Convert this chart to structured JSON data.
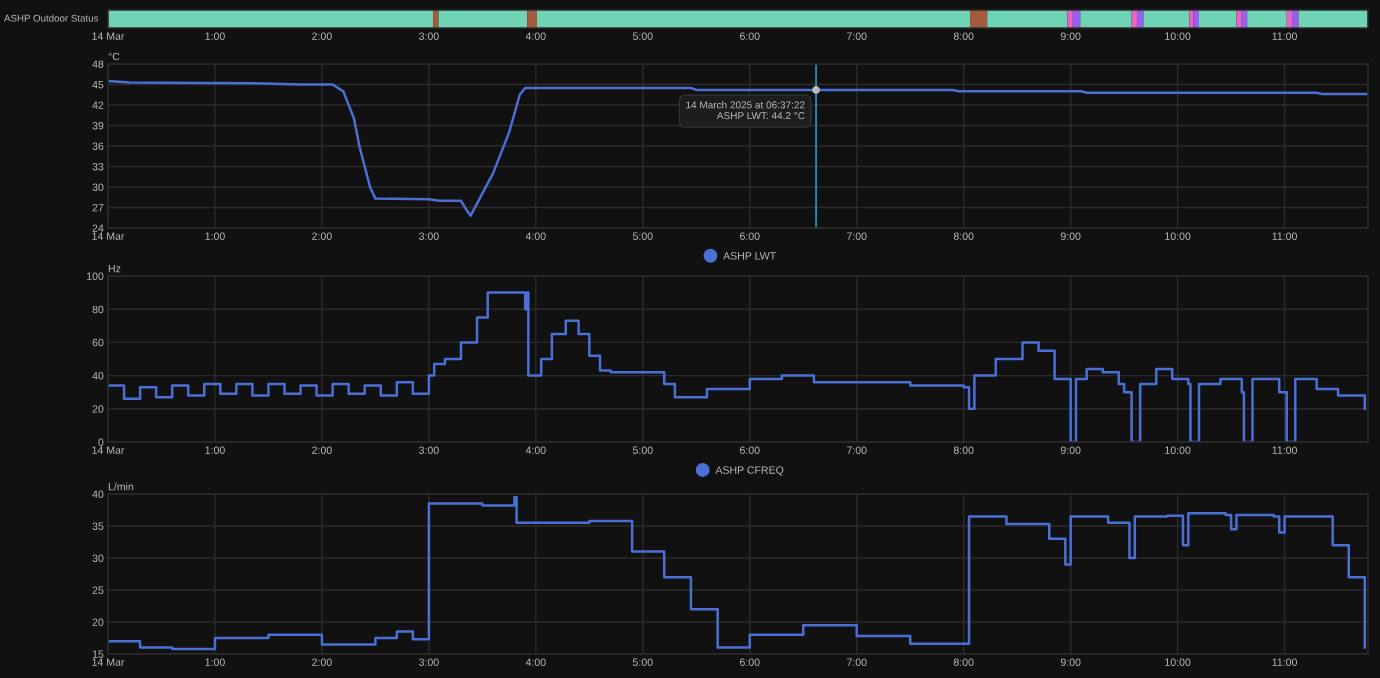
{
  "chart_data": [
    {
      "type": "bar",
      "orientation": "horizontal",
      "stacked": true,
      "categories": [
        null
      ],
      "title": "ASHP Outdoor Status",
      "xlim": [
        0,
        11.78
      ],
      "tick_labels": "x",
      "xticks": [
        {
          "value": 0,
          "label": "14 Mar"
        },
        {
          "value": 1,
          "label": "1:00"
        },
        {
          "value": 2,
          "label": "2:00"
        },
        {
          "value": 3,
          "label": "3:00"
        },
        {
          "value": 4,
          "label": "4:00"
        },
        {
          "value": 5,
          "label": "5:00"
        },
        {
          "value": 6,
          "label": "6:00"
        },
        {
          "value": 7,
          "label": "7:00"
        },
        {
          "value": 8,
          "label": "8:00"
        },
        {
          "value": 9,
          "label": "9:00"
        },
        {
          "value": 10,
          "label": "10:00"
        },
        {
          "value": 11,
          "label": "11:00"
        }
      ],
      "series": [
        {
          "color": "#6fd3b6",
          "values": [
            3.04
          ]
        },
        {
          "color": "#a65a3c",
          "values": [
            0.05
          ]
        },
        {
          "color": "#6fd3b6",
          "values": [
            0.83
          ]
        },
        {
          "color": "#a65a3c",
          "values": [
            0.09
          ]
        },
        {
          "color": "#6fd3b6",
          "values": [
            4.05
          ]
        },
        {
          "color": "#a65a3c",
          "values": [
            0.16
          ]
        },
        {
          "color": "#6fd3b6",
          "values": [
            0.75
          ]
        },
        {
          "color": "#e865c4",
          "values": [
            0.05
          ]
        },
        {
          "color": "#9b5cf0",
          "values": [
            0.07
          ]
        },
        {
          "color": "#6fd3b6",
          "values": [
            0.48
          ]
        },
        {
          "color": "#e865c4",
          "values": [
            0.05
          ]
        },
        {
          "color": "#9b5cf0",
          "values": [
            0.06
          ]
        },
        {
          "color": "#6fd3b6",
          "values": [
            0.43
          ]
        },
        {
          "color": "#e865c4",
          "values": [
            0.04
          ]
        },
        {
          "color": "#9b5cf0",
          "values": [
            0.05
          ]
        },
        {
          "color": "#6fd3b6",
          "values": [
            0.35
          ]
        },
        {
          "color": "#e865c4",
          "values": [
            0.05
          ]
        },
        {
          "color": "#9b5cf0",
          "values": [
            0.05
          ]
        },
        {
          "color": "#6fd3b6",
          "values": [
            0.37
          ]
        },
        {
          "color": "#e865c4",
          "values": [
            0.05
          ]
        },
        {
          "color": "#9b5cf0",
          "values": [
            0.06
          ]
        },
        {
          "color": "#6fd3b6",
          "values": [
            0.65
          ]
        }
      ]
    },
    {
      "type": "line",
      "ylabel": "°C",
      "xlim": [
        0,
        11.78
      ],
      "ylim": [
        24,
        48
      ],
      "yticks": [
        24,
        27,
        30,
        33,
        36,
        39,
        42,
        45,
        48
      ],
      "xticks": [
        {
          "value": 0,
          "label": "14 Mar"
        },
        {
          "value": 1,
          "label": "1:00"
        },
        {
          "value": 2,
          "label": "2:00"
        },
        {
          "value": 3,
          "label": "3:00"
        },
        {
          "value": 4,
          "label": "4:00"
        },
        {
          "value": 5,
          "label": "5:00"
        },
        {
          "value": 6,
          "label": "6:00"
        },
        {
          "value": 7,
          "label": "7:00"
        },
        {
          "value": 8,
          "label": "8:00"
        },
        {
          "value": 9,
          "label": "9:00"
        },
        {
          "value": 10,
          "label": "10:00"
        },
        {
          "value": 11,
          "label": "11:00"
        }
      ],
      "grid": true,
      "legend": "bottom",
      "ref_lines": [
        {
          "axis": "x",
          "value": 6.62,
          "color": "#2a86ad"
        }
      ],
      "annotations": [
        {
          "text": "14 March 2025 at 06:37:22\nASHP LWT: 44.2 °C",
          "x": 6.62,
          "y": 44.2
        }
      ],
      "series": [
        {
          "name": "ASHP LWT",
          "color": "#4a6fd6",
          "x": [
            0,
            0.2,
            1.3,
            1.8,
            2.1,
            2.2,
            2.3,
            2.35,
            2.45,
            2.5,
            3.0,
            3.1,
            3.3,
            3.35,
            3.39,
            3.6,
            3.75,
            3.85,
            3.9,
            5.45,
            5.5,
            7.9,
            7.95,
            9.1,
            9.15,
            11.3,
            11.35,
            11.78
          ],
          "values": [
            45.5,
            45.3,
            45.2,
            45.0,
            45.0,
            44.0,
            40.0,
            36.0,
            30.0,
            28.3,
            28.2,
            28.0,
            28.0,
            26.7,
            25.8,
            32.0,
            38.0,
            43.5,
            44.5,
            44.5,
            44.2,
            44.2,
            44.0,
            44.0,
            43.8,
            43.8,
            43.6,
            43.6
          ]
        }
      ]
    },
    {
      "type": "step",
      "ylabel": "Hz",
      "xlim": [
        0,
        11.78
      ],
      "ylim": [
        0,
        100
      ],
      "yticks": [
        0,
        20,
        40,
        60,
        80,
        100
      ],
      "xticks": [
        {
          "value": 0,
          "label": "14 Mar"
        },
        {
          "value": 1,
          "label": "1:00"
        },
        {
          "value": 2,
          "label": "2:00"
        },
        {
          "value": 3,
          "label": "3:00"
        },
        {
          "value": 4,
          "label": "4:00"
        },
        {
          "value": 5,
          "label": "5:00"
        },
        {
          "value": 6,
          "label": "6:00"
        },
        {
          "value": 7,
          "label": "7:00"
        },
        {
          "value": 8,
          "label": "8:00"
        },
        {
          "value": 9,
          "label": "9:00"
        },
        {
          "value": 10,
          "label": "10:00"
        },
        {
          "value": 11,
          "label": "11:00"
        }
      ],
      "grid": true,
      "legend": "bottom",
      "series": [
        {
          "name": "ASHP CFREQ",
          "color": "#4a6fd6",
          "x": [
            0,
            0.15,
            0.3,
            0.45,
            0.6,
            0.75,
            0.9,
            1.05,
            1.2,
            1.35,
            1.5,
            1.65,
            1.8,
            1.95,
            2.1,
            2.25,
            2.4,
            2.55,
            2.7,
            2.85,
            3.0,
            3.05,
            3.15,
            3.3,
            3.45,
            3.55,
            3.85,
            3.9,
            3.92,
            3.93,
            4.0,
            4.05,
            4.15,
            4.28,
            4.4,
            4.5,
            4.6,
            4.7,
            5.0,
            5.2,
            5.3,
            5.6,
            6.0,
            6.3,
            6.6,
            7.0,
            7.5,
            8.0,
            8.05,
            8.1,
            8.25,
            8.3,
            8.55,
            8.7,
            8.85,
            9.0,
            9.05,
            9.15,
            9.3,
            9.45,
            9.5,
            9.57,
            9.65,
            9.8,
            9.95,
            10.1,
            10.12,
            10.2,
            10.4,
            10.6,
            10.62,
            10.7,
            10.85,
            10.95,
            11.02,
            11.1,
            11.3,
            11.5,
            11.75
          ],
          "values": [
            34,
            26,
            33,
            27,
            34,
            28,
            35,
            29,
            35,
            28,
            35,
            29,
            34,
            28,
            35,
            29,
            34,
            28,
            36,
            29,
            40,
            47,
            50,
            60,
            75,
            90,
            90,
            80,
            90,
            40,
            40,
            50,
            65,
            73,
            65,
            52,
            43,
            42,
            42,
            35,
            27,
            32,
            38,
            40,
            36,
            36,
            34,
            33,
            20,
            40,
            40,
            50,
            60,
            55,
            38,
            0,
            38,
            44,
            42,
            35,
            30,
            0,
            35,
            44,
            38,
            35,
            0,
            35,
            38,
            30,
            0,
            38,
            38,
            30,
            0,
            38,
            32,
            28,
            20
          ]
        }
      ]
    },
    {
      "type": "step",
      "ylabel": "L/min",
      "xlim": [
        0,
        11.78
      ],
      "ylim": [
        15,
        40
      ],
      "yticks": [
        15,
        20,
        25,
        30,
        35,
        40
      ],
      "xticks": [
        {
          "value": 0,
          "label": "14 Mar"
        },
        {
          "value": 1,
          "label": "1:00"
        },
        {
          "value": 2,
          "label": "2:00"
        },
        {
          "value": 3,
          "label": "3:00"
        },
        {
          "value": 4,
          "label": "4:00"
        },
        {
          "value": 5,
          "label": "5:00"
        },
        {
          "value": 6,
          "label": "6:00"
        },
        {
          "value": 7,
          "label": "7:00"
        },
        {
          "value": 8,
          "label": "8:00"
        },
        {
          "value": 9,
          "label": "9:00"
        },
        {
          "value": 10,
          "label": "10:00"
        },
        {
          "value": 11,
          "label": "11:00"
        }
      ],
      "grid": true,
      "series": [
        {
          "color": "#4a6fd6",
          "x": [
            0,
            0.3,
            0.6,
            1.0,
            1.5,
            2.0,
            2.5,
            2.7,
            2.85,
            3.0,
            3.5,
            3.8,
            3.82,
            4.5,
            4.75,
            4.9,
            5.2,
            5.45,
            5.7,
            6.0,
            6.5,
            7.0,
            7.5,
            8.0,
            8.05,
            8.4,
            8.8,
            8.95,
            9.0,
            9.35,
            9.55,
            9.6,
            9.9,
            10.05,
            10.1,
            10.45,
            10.5,
            10.55,
            10.9,
            10.95,
            11.0,
            11.3,
            11.45,
            11.6,
            11.75
          ],
          "values": [
            17,
            16,
            15.8,
            17.5,
            18,
            16.5,
            17.5,
            18.5,
            17.3,
            38.5,
            38.2,
            39.5,
            35.5,
            35.8,
            35.8,
            31,
            27,
            22,
            16,
            18,
            19.5,
            17.8,
            16.6,
            16.6,
            36.5,
            35.3,
            33,
            29,
            36.5,
            35.5,
            30,
            36.5,
            36.6,
            32,
            37,
            36.7,
            34.5,
            36.7,
            36.5,
            34,
            36.5,
            36.5,
            32,
            27,
            16
          ]
        }
      ]
    }
  ]
}
